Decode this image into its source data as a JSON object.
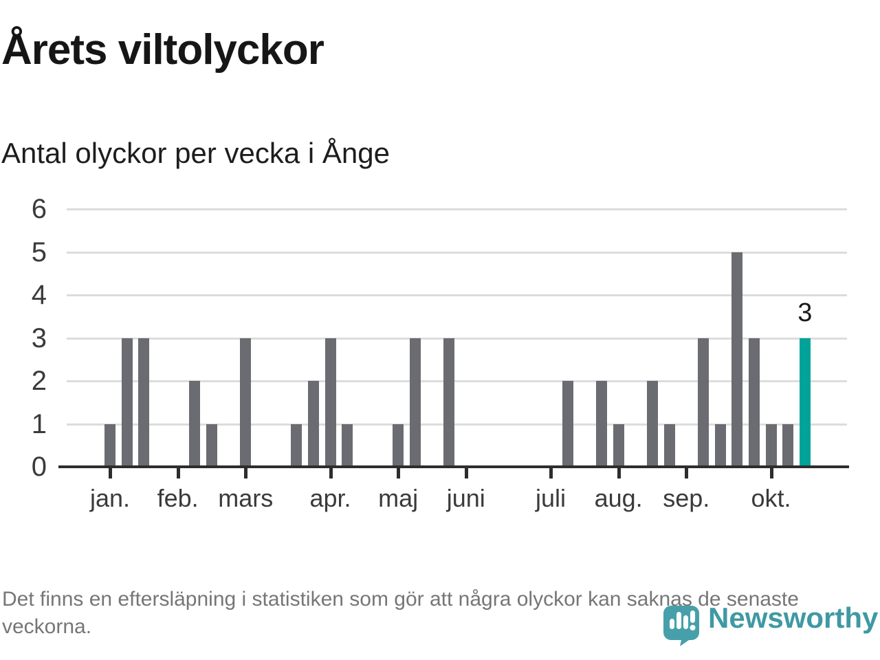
{
  "page": {
    "title": "Årets viltolyckor",
    "subtitle": "Antal olyckor per vecka i Ånge",
    "footnote": "Det finns en eftersläpning i statistiken som gör att några olyckor kan saknas de senaste veckorna.",
    "brand": "Newsworthy"
  },
  "colors": {
    "bar": "#6b6b72",
    "highlight": "#00a39a",
    "grid": "#dcdcdc",
    "axis": "#2d2d2d",
    "tick_label": "#3a3a3a",
    "annotation": "#1a1a1a",
    "title": "#161616",
    "footnote": "#767676",
    "brand_text": "#3f99a3",
    "brand_icon": "#47a0a9"
  },
  "chart_data": {
    "type": "bar",
    "title": "Årets viltolyckor",
    "subtitle": "Antal olyckor per vecka i Ånge",
    "x_unit": "vecka",
    "weeks": [
      1,
      2,
      3,
      4,
      5,
      6,
      7,
      8,
      9,
      10,
      11,
      12,
      13,
      14,
      15,
      16,
      17,
      18,
      19,
      20,
      21,
      22,
      23,
      24,
      25,
      26,
      27,
      28,
      29,
      30,
      31,
      32,
      33,
      34,
      35,
      36,
      37,
      38,
      39,
      40,
      41,
      42
    ],
    "values": [
      1,
      3,
      3,
      0,
      0,
      2,
      1,
      0,
      3,
      0,
      0,
      1,
      2,
      3,
      1,
      0,
      0,
      1,
      3,
      0,
      3,
      0,
      0,
      0,
      0,
      0,
      0,
      2,
      0,
      2,
      1,
      0,
      2,
      1,
      0,
      3,
      1,
      5,
      3,
      1,
      1,
      3
    ],
    "highlight_week": 42,
    "annotation": {
      "text": "3",
      "week": 42
    },
    "ylim": [
      0,
      6
    ],
    "yticks": [
      0,
      1,
      2,
      3,
      4,
      5,
      6
    ],
    "grid": true,
    "legend_position": "none",
    "month_ticks": [
      {
        "label": "jan.",
        "week": 1
      },
      {
        "label": "feb.",
        "week": 5
      },
      {
        "label": "mars",
        "week": 9
      },
      {
        "label": "apr.",
        "week": 14
      },
      {
        "label": "maj",
        "week": 18
      },
      {
        "label": "juni",
        "week": 22
      },
      {
        "label": "juli",
        "week": 27
      },
      {
        "label": "aug.",
        "week": 31
      },
      {
        "label": "sep.",
        "week": 35
      },
      {
        "label": "okt.",
        "week": 40
      }
    ]
  }
}
